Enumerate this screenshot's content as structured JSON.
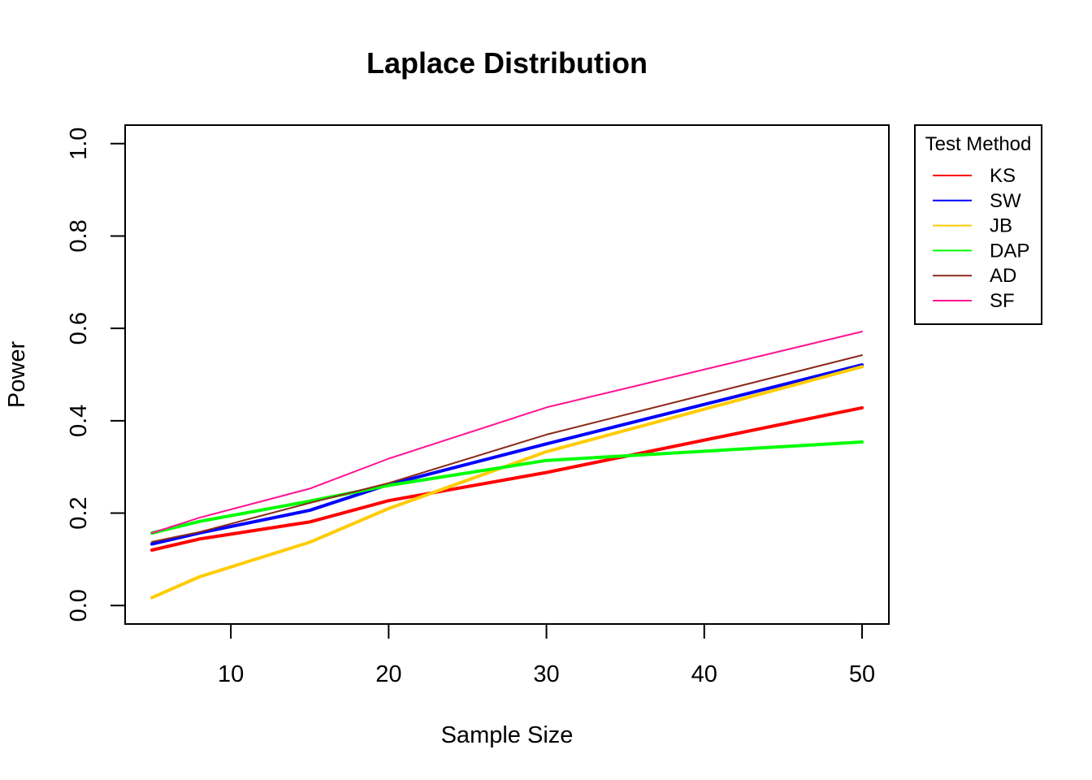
{
  "chart_data": {
    "type": "line",
    "title": "Laplace Distribution",
    "xlabel": "Sample Size",
    "ylabel": "Power",
    "x": [
      5,
      8,
      15,
      20,
      30,
      50
    ],
    "xlim": [
      3.3,
      51.7
    ],
    "ylim": [
      -0.04,
      1.04
    ],
    "xticks": [
      10,
      20,
      30,
      40,
      50
    ],
    "yticks": [
      "0.0",
      "0.2",
      "0.4",
      "0.6",
      "0.8",
      "1.0"
    ],
    "grid": false,
    "legend": {
      "title": "Test Method",
      "placement": "outside-top-right"
    },
    "series": [
      {
        "name": "KS",
        "color": "#ff0000",
        "width": "thick",
        "values": [
          0.12,
          0.144,
          0.181,
          0.227,
          0.288,
          0.428
        ]
      },
      {
        "name": "SW",
        "color": "#0000ff",
        "width": "thick",
        "values": [
          0.133,
          0.157,
          0.206,
          0.262,
          0.35,
          0.521
        ]
      },
      {
        "name": "JB",
        "color": "#ffcc00",
        "width": "thick",
        "values": [
          0.017,
          0.062,
          0.137,
          0.21,
          0.333,
          0.517
        ]
      },
      {
        "name": "DAP",
        "color": "#00ff00",
        "width": "thick",
        "values": [
          0.157,
          0.182,
          0.226,
          0.26,
          0.314,
          0.354
        ]
      },
      {
        "name": "AD",
        "color": "#8b2a1a",
        "width": "thin",
        "values": [
          0.138,
          0.159,
          0.222,
          0.265,
          0.37,
          0.542
        ]
      },
      {
        "name": "SF",
        "color": "#ff1493",
        "width": "thin",
        "values": [
          0.157,
          0.19,
          0.253,
          0.318,
          0.429,
          0.593
        ]
      }
    ]
  }
}
